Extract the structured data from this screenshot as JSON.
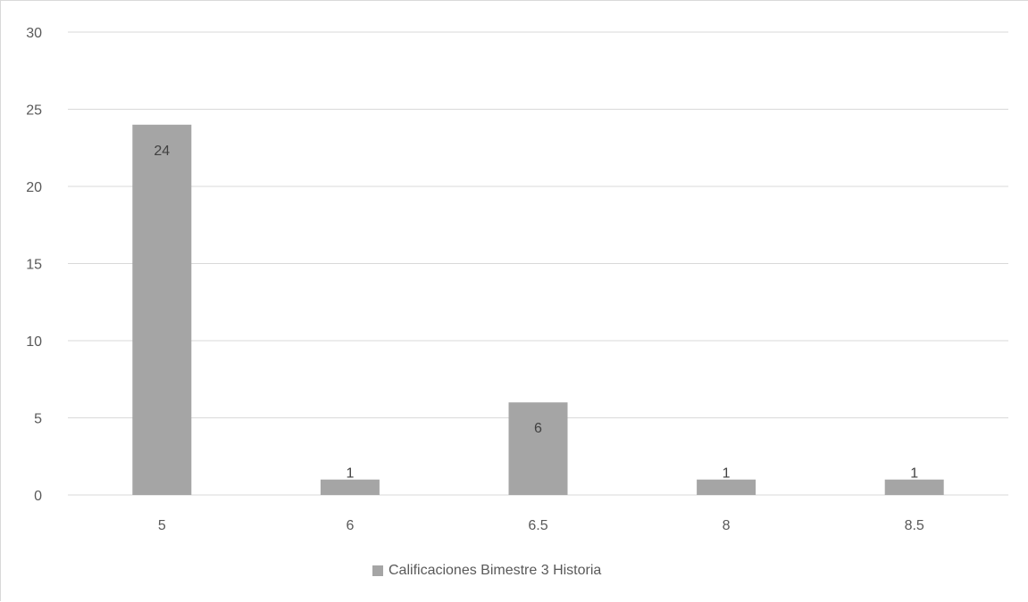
{
  "chart_data": {
    "type": "bar",
    "categories": [
      "5",
      "6",
      "6.5",
      "8",
      "8.5"
    ],
    "series": [
      {
        "name": "Calificaciones Bimestre 3 Historia",
        "values": [
          24,
          1,
          6,
          1,
          1
        ],
        "color": "#a5a5a5"
      }
    ],
    "data_labels": [
      "24",
      "1",
      "6",
      "1",
      "1"
    ],
    "y_ticks": [
      "0",
      "5",
      "10",
      "15",
      "20",
      "25",
      "30"
    ],
    "ylim": [
      0,
      30
    ],
    "grid": true,
    "legend": "bottom",
    "title": "",
    "xlabel": "",
    "ylabel": ""
  }
}
